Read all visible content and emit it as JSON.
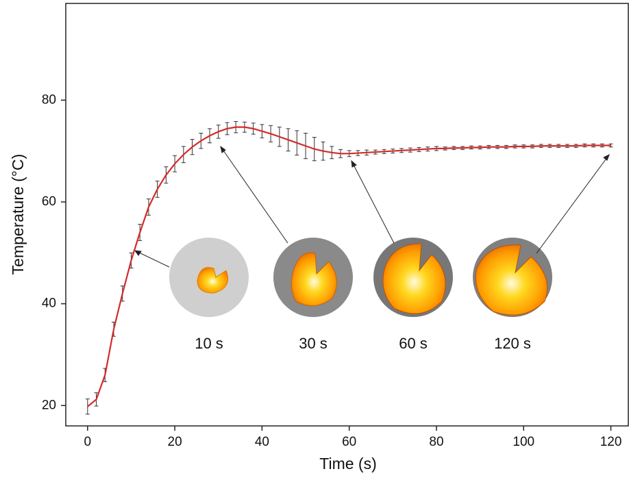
{
  "chart_data": {
    "type": "line",
    "xlabel": "Time (s)",
    "ylabel": "Temperature (°C)",
    "x": [
      0,
      2,
      4,
      6,
      8,
      10,
      12,
      14,
      16,
      18,
      20,
      22,
      24,
      26,
      28,
      30,
      32,
      34,
      36,
      38,
      40,
      42,
      44,
      46,
      48,
      50,
      52,
      54,
      56,
      58,
      60,
      62,
      64,
      66,
      68,
      70,
      72,
      74,
      76,
      78,
      80,
      82,
      84,
      86,
      88,
      90,
      92,
      94,
      96,
      98,
      100,
      102,
      104,
      106,
      108,
      110,
      112,
      114,
      116,
      118,
      120
    ],
    "series": [
      {
        "color": "#d42a2a",
        "error_color": "#333333",
        "values": [
          19.8,
          21.2,
          26,
          35,
          42,
          48.5,
          54,
          59,
          62.5,
          65.3,
          67.5,
          69.3,
          70.8,
          72,
          73,
          73.8,
          74.4,
          74.7,
          74.7,
          74.4,
          73.9,
          73.4,
          72.8,
          72.2,
          71.6,
          71,
          70.4,
          70,
          69.7,
          69.5,
          69.5,
          69.6,
          69.7,
          69.8,
          69.9,
          70,
          70.1,
          70.2,
          70.3,
          70.4,
          70.5,
          70.5,
          70.6,
          70.6,
          70.7,
          70.7,
          70.8,
          70.8,
          70.8,
          70.9,
          70.9,
          70.9,
          71,
          71,
          71,
          71,
          71,
          71.1,
          71.1,
          71.1,
          71.1
        ],
        "errors": [
          1.5,
          1.3,
          1.3,
          1.4,
          1.5,
          1.5,
          1.6,
          1.6,
          1.6,
          1.6,
          1.6,
          1.6,
          1.5,
          1.5,
          1.4,
          1.3,
          1.2,
          1.1,
          1,
          1.1,
          1.3,
          1.6,
          1.9,
          2.2,
          2.4,
          2.5,
          2.3,
          1.8,
          1.2,
          0.8,
          0.6,
          0.5,
          0.5,
          0.4,
          0.4,
          0.4,
          0.4,
          0.4,
          0.4,
          0.4,
          0.4,
          0.3,
          0.3,
          0.3,
          0.3,
          0.3,
          0.3,
          0.3,
          0.3,
          0.3,
          0.3,
          0.3,
          0.3,
          0.3,
          0.3,
          0.3,
          0.3,
          0.3,
          0.3,
          0.3,
          0.3
        ]
      }
    ],
    "xlim": [
      -5,
      124
    ],
    "xticks": [
      0,
      20,
      40,
      60,
      80,
      100,
      120
    ],
    "ylim": [
      16,
      99
    ],
    "yticks": [
      20,
      40,
      60,
      80
    ],
    "annotations": [
      "10 s",
      "30 s",
      "60 s",
      "120 s"
    ]
  }
}
